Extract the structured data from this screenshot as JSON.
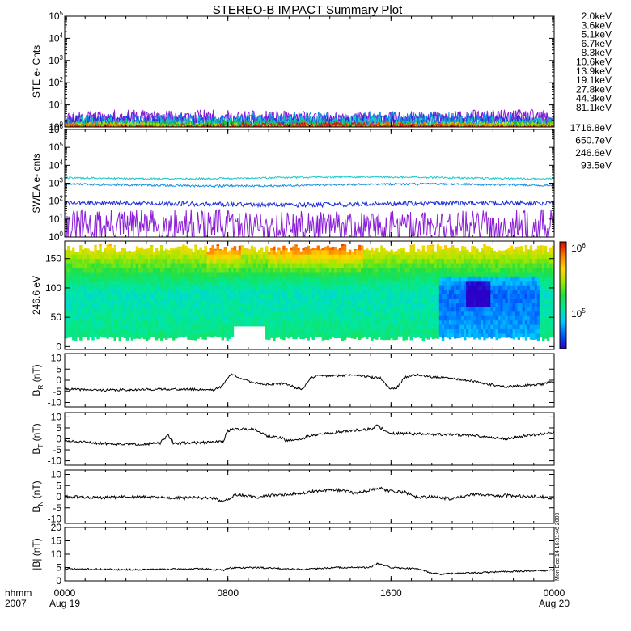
{
  "figure": {
    "title": "STEREO-B IMPACT Summary Plot",
    "credit": "Mon Dec 14 16:31:46 2009",
    "time_axis": {
      "corner_labels": [
        "hhmm",
        "2007"
      ],
      "ticks": [
        {
          "t": 0,
          "top": "0000",
          "bottom": "Aug 19"
        },
        {
          "t": 480,
          "top": "0800",
          "bottom": ""
        },
        {
          "t": 960,
          "top": "1600",
          "bottom": ""
        },
        {
          "t": 1440,
          "top": "0000",
          "bottom": "Aug 20"
        }
      ],
      "xlim_minutes": [
        0,
        1440
      ]
    }
  },
  "chart_data": [
    {
      "type": "line",
      "ylabel": "STE e- Cnts",
      "yscale": "log",
      "ylim": [
        1,
        100000
      ],
      "yticks": [
        {
          "v": 1,
          "base": "10",
          "exp": "0"
        },
        {
          "v": 10,
          "base": "10",
          "exp": "1"
        },
        {
          "v": 100,
          "base": "10",
          "exp": "2"
        },
        {
          "v": 1000,
          "base": "10",
          "exp": "3"
        },
        {
          "v": 10000,
          "base": "10",
          "exp": "4"
        },
        {
          "v": 100000,
          "base": "10",
          "exp": "5"
        }
      ],
      "legend_placement": "right",
      "series": [
        {
          "name": "2.0keV",
          "color": "#8c1fd6",
          "level": 2.2,
          "noise": 1.8,
          "seed": 11
        },
        {
          "name": "3.6keV",
          "color": "#6a22d8",
          "level": 2.0,
          "noise": 1.5,
          "seed": 12
        },
        {
          "name": "5.1keV",
          "color": "#1b2ed8",
          "level": 1.7,
          "noise": 1.2,
          "seed": 13
        },
        {
          "name": "6.7keV",
          "color": "#1380e0",
          "level": 1.5,
          "noise": 1.0,
          "seed": 14
        },
        {
          "name": "8.3keV",
          "color": "#18c8c8",
          "level": 1.3,
          "noise": 0.8,
          "seed": 15
        },
        {
          "name": "10.6keV",
          "color": "#18c070",
          "level": 1.2,
          "noise": 0.5,
          "seed": 16
        },
        {
          "name": "13.9keV",
          "color": "#22c018",
          "level": 1.1,
          "noise": 0.4,
          "seed": 17
        },
        {
          "name": "19.1keV",
          "color": "#b8e018",
          "level": 1.1,
          "noise": 0.3,
          "seed": 18
        },
        {
          "name": "27.8keV",
          "color": "#e8a000",
          "level": 1.05,
          "noise": 0.3,
          "seed": 19
        },
        {
          "name": "44.3keV",
          "color": "#e06000",
          "level": 1.05,
          "noise": 0.3,
          "seed": 20
        },
        {
          "name": "81.1keV",
          "color": "#d01010",
          "level": 1.05,
          "noise": 0.3,
          "seed": 21
        }
      ]
    },
    {
      "type": "line",
      "ylabel": "SWEA e- cnts",
      "yscale": "log",
      "ylim": [
        1,
        1000000
      ],
      "yticks": [
        {
          "v": 1,
          "base": "10",
          "exp": "0"
        },
        {
          "v": 10,
          "base": "10",
          "exp": "1"
        },
        {
          "v": 100,
          "base": "10",
          "exp": "2"
        },
        {
          "v": 1000,
          "base": "10",
          "exp": "3"
        },
        {
          "v": 10000,
          "base": "10",
          "exp": "4"
        },
        {
          "v": 100000,
          "base": "10",
          "exp": "5"
        },
        {
          "v": 1000000,
          "base": "10",
          "exp": "6"
        }
      ],
      "legend_placement": "right",
      "series": [
        {
          "name": "1716.8eV",
          "color": "#8c1fd6",
          "level": 4,
          "noise": 4.0,
          "seed": 31
        },
        {
          "name": "650.7eV",
          "color": "#1b2ed8",
          "level": 70,
          "noise": 0.25,
          "seed": 32
        },
        {
          "name": "246.6eV",
          "color": "#1390e0",
          "level": 800,
          "noise": 0.12,
          "seed": 33
        },
        {
          "name": "93.5eV",
          "color": "#18c8c8",
          "level": 2000,
          "noise": 0.1,
          "seed": 34
        }
      ]
    },
    {
      "type": "heatmap",
      "ylabel": "246.6 eV",
      "ylim": [
        -5,
        180
      ],
      "yticks": [
        0,
        50,
        100,
        150
      ],
      "colorbar": {
        "labels": [
          {
            "v": 100000,
            "base": "10",
            "exp": "5"
          },
          {
            "v": 1000000,
            "base": "10",
            "exp": "6"
          }
        ],
        "colors": [
          "#2a00c8",
          "#0058ff",
          "#00c8ff",
          "#00e8a0",
          "#20e040",
          "#a0e800",
          "#ffd800",
          "#ff7800",
          "#e00000"
        ]
      },
      "data_gap": {
        "t_start": 500,
        "t_end": 590,
        "pitch_max": 35
      }
    },
    {
      "type": "line",
      "ylabel_main": "B",
      "ylabel_sub": "R",
      "ylabel_unit": " (nT)",
      "ylim": [
        -12,
        12
      ],
      "yticks": [
        -10,
        -5,
        0,
        5,
        10
      ],
      "series": [
        {
          "name": "",
          "color": "#000000",
          "noise": 0.5,
          "seed": 41,
          "knots": [
            [
              0,
              -4
            ],
            [
              120,
              -4.5
            ],
            [
              300,
              -4
            ],
            [
              440,
              -4.3
            ],
            [
              460,
              -3
            ],
            [
              470,
              -1
            ],
            [
              480,
              1
            ],
            [
              490,
              2.8
            ],
            [
              510,
              1.5
            ],
            [
              530,
              0
            ],
            [
              560,
              -1.2
            ],
            [
              600,
              -2
            ],
            [
              640,
              -1.5
            ],
            [
              660,
              -2
            ],
            [
              680,
              -3.5
            ],
            [
              700,
              -4
            ],
            [
              720,
              0.5
            ],
            [
              740,
              2
            ],
            [
              800,
              2
            ],
            [
              860,
              2.5
            ],
            [
              900,
              1.2
            ],
            [
              930,
              1.0
            ],
            [
              940,
              -1
            ],
            [
              955,
              -3.5
            ],
            [
              975,
              -3.8
            ],
            [
              1000,
              1.2
            ],
            [
              1030,
              2.5
            ],
            [
              1080,
              1.5
            ],
            [
              1140,
              0.8
            ],
            [
              1200,
              -0.5
            ],
            [
              1260,
              -2.2
            ],
            [
              1300,
              -3
            ],
            [
              1340,
              -2.5
            ],
            [
              1400,
              -2
            ],
            [
              1440,
              -0.5
            ]
          ]
        }
      ]
    },
    {
      "type": "line",
      "ylabel_main": "B",
      "ylabel_sub": "T",
      "ylabel_unit": " (nT)",
      "ylim": [
        -12,
        12
      ],
      "yticks": [
        -10,
        -5,
        0,
        5,
        10
      ],
      "series": [
        {
          "name": "",
          "color": "#000000",
          "noise": 0.6,
          "seed": 51,
          "knots": [
            [
              0,
              -1
            ],
            [
              100,
              -2
            ],
            [
              200,
              -2.5
            ],
            [
              280,
              -2
            ],
            [
              300,
              1
            ],
            [
              305,
              1.5
            ],
            [
              320,
              -2
            ],
            [
              440,
              -1.5
            ],
            [
              470,
              -1
            ],
            [
              475,
              3
            ],
            [
              490,
              4.5
            ],
            [
              560,
              4.5
            ],
            [
              600,
              1
            ],
            [
              640,
              0.5
            ],
            [
              650,
              -1
            ],
            [
              670,
              -0.5
            ],
            [
              700,
              0
            ],
            [
              720,
              1.5
            ],
            [
              800,
              3
            ],
            [
              860,
              4
            ],
            [
              900,
              4.5
            ],
            [
              920,
              6
            ],
            [
              940,
              4
            ],
            [
              960,
              2.5
            ],
            [
              1000,
              2.5
            ],
            [
              1080,
              2
            ],
            [
              1140,
              2
            ],
            [
              1200,
              1.5
            ],
            [
              1300,
              0
            ],
            [
              1360,
              1.5
            ],
            [
              1440,
              3
            ]
          ]
        }
      ]
    },
    {
      "type": "line",
      "ylabel_main": "B",
      "ylabel_sub": "N",
      "ylabel_unit": " (nT)",
      "ylim": [
        -12,
        12
      ],
      "yticks": [
        -10,
        -5,
        0,
        5,
        10
      ],
      "series": [
        {
          "name": "",
          "color": "#000000",
          "noise": 0.7,
          "seed": 61,
          "knots": [
            [
              0,
              0
            ],
            [
              100,
              -0.5
            ],
            [
              200,
              0
            ],
            [
              300,
              -0.5
            ],
            [
              440,
              -0.5
            ],
            [
              465,
              -2.5
            ],
            [
              480,
              -1.5
            ],
            [
              500,
              1
            ],
            [
              560,
              -0.3
            ],
            [
              600,
              0.5
            ],
            [
              700,
              1.5
            ],
            [
              740,
              2.5
            ],
            [
              800,
              3
            ],
            [
              860,
              1.5
            ],
            [
              920,
              4
            ],
            [
              960,
              2.5
            ],
            [
              1000,
              2
            ],
            [
              1040,
              -0.5
            ],
            [
              1080,
              0
            ],
            [
              1140,
              -1
            ],
            [
              1200,
              1
            ],
            [
              1300,
              0.5
            ],
            [
              1400,
              0
            ],
            [
              1440,
              -1
            ]
          ]
        }
      ]
    },
    {
      "type": "line",
      "ylabel_main": "|B|",
      "ylabel_sub": "",
      "ylabel_unit": " (nT)",
      "ylim": [
        0,
        20
      ],
      "yticks": [
        0,
        5,
        10,
        15,
        20
      ],
      "series": [
        {
          "name": "",
          "color": "#000000",
          "noise": 0.3,
          "seed": 71,
          "knots": [
            [
              0,
              4.5
            ],
            [
              200,
              4.2
            ],
            [
              400,
              4.5
            ],
            [
              470,
              4
            ],
            [
              480,
              4.8
            ],
            [
              560,
              5
            ],
            [
              700,
              4.3
            ],
            [
              800,
              5
            ],
            [
              900,
              5
            ],
            [
              920,
              6.5
            ],
            [
              960,
              5
            ],
            [
              1040,
              4.5
            ],
            [
              1080,
              3
            ],
            [
              1100,
              2.5
            ],
            [
              1200,
              3
            ],
            [
              1300,
              3.5
            ],
            [
              1440,
              4
            ]
          ]
        }
      ]
    }
  ]
}
